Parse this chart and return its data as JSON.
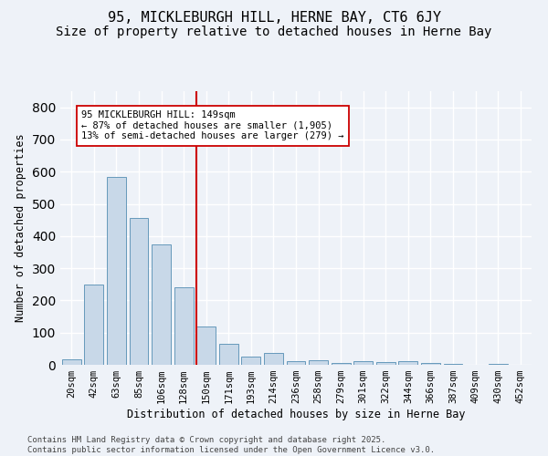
{
  "title": "95, MICKLEBURGH HILL, HERNE BAY, CT6 6JY",
  "subtitle": "Size of property relative to detached houses in Herne Bay",
  "xlabel": "Distribution of detached houses by size in Herne Bay",
  "ylabel": "Number of detached properties",
  "categories": [
    "20sqm",
    "42sqm",
    "63sqm",
    "85sqm",
    "106sqm",
    "128sqm",
    "150sqm",
    "171sqm",
    "193sqm",
    "214sqm",
    "236sqm",
    "258sqm",
    "279sqm",
    "301sqm",
    "322sqm",
    "344sqm",
    "366sqm",
    "387sqm",
    "409sqm",
    "430sqm",
    "452sqm"
  ],
  "values": [
    18,
    248,
    585,
    455,
    375,
    240,
    120,
    65,
    25,
    38,
    12,
    15,
    5,
    10,
    8,
    10,
    5,
    3,
    0,
    2,
    0
  ],
  "bar_color": "#c8d8e8",
  "bar_edge_color": "#6699bb",
  "bar_linewidth": 0.7,
  "red_line_index": 6,
  "red_line_color": "#cc0000",
  "annotation_text": "95 MICKLEBURGH HILL: 149sqm\n← 87% of detached houses are smaller (1,905)\n13% of semi-detached houses are larger (279) →",
  "bg_color": "#eef2f8",
  "ylim_max": 850,
  "title_fontsize": 11,
  "subtitle_fontsize": 10,
  "ylabel_fontsize": 8.5,
  "xlabel_fontsize": 8.5,
  "tick_fontsize": 7.5,
  "annotation_fontsize": 7.5,
  "footer_fontsize": 6.5,
  "footer_text": "Contains HM Land Registry data © Crown copyright and database right 2025.\nContains public sector information licensed under the Open Government Licence v3.0."
}
